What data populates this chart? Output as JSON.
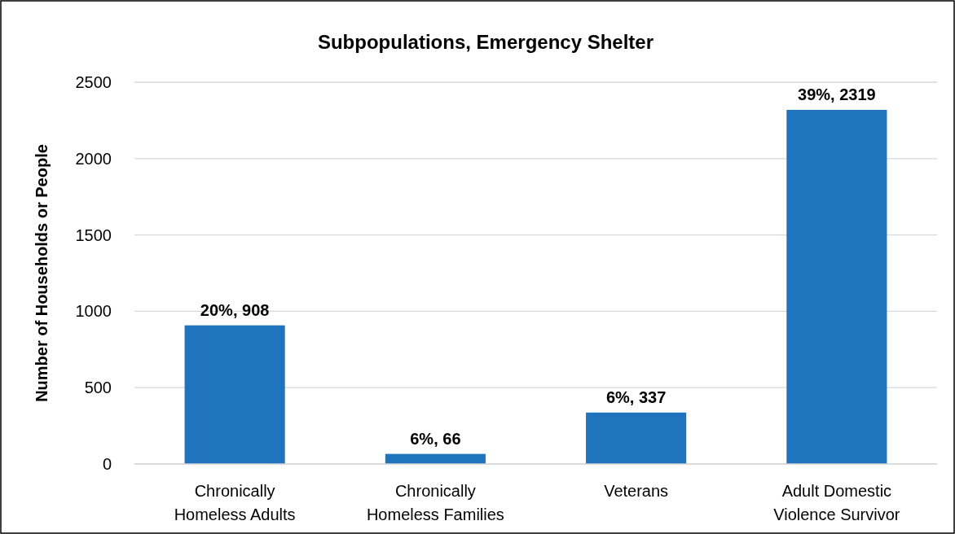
{
  "chart_data": {
    "type": "bar",
    "title": "Subpopulations, Emergency Shelter",
    "ylabel": "Number of Households or People",
    "categories": [
      "Chronically Homeless Adults",
      "Chronically Homeless Families",
      "Veterans",
      "Adult Domestic Violence Survivor"
    ],
    "values": [
      908,
      66,
      337,
      2319
    ],
    "value_labels": [
      "20%, 908",
      "6%, 66",
      "6%, 337",
      "39%, 2319"
    ],
    "color": "#1f74bd",
    "ylim": [
      0,
      2500
    ],
    "yticks": [
      0,
      500,
      1000,
      1500,
      2000,
      2500
    ],
    "grid": "y"
  }
}
